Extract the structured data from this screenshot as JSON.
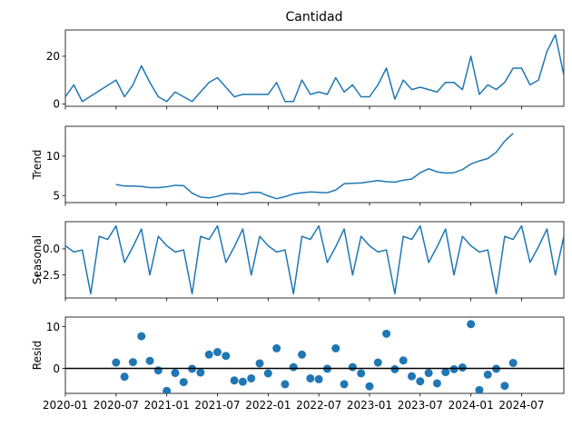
{
  "figure": {
    "title": "Cantidad",
    "line_color": "#1f77b4",
    "marker_color": "#1f77b4",
    "zero_line_color": "#000000"
  },
  "x_axis": {
    "type": "date",
    "range": [
      "2020-01",
      "2024-12"
    ],
    "tick_labels": [
      "2020-01",
      "2020-07",
      "2021-01",
      "2021-07",
      "2022-01",
      "2022-07",
      "2023-01",
      "2023-07",
      "2024-01",
      "2024-07"
    ],
    "tick_dates": [
      "2020-01",
      "2020-07",
      "2021-01",
      "2021-07",
      "2022-01",
      "2022-07",
      "2023-01",
      "2023-07",
      "2024-01",
      "2024-07"
    ]
  },
  "chart_data": [
    {
      "type": "line",
      "name": "Cantidad",
      "title": "Cantidad",
      "ylabel": "",
      "ylim": [
        -1,
        31
      ],
      "yticks": [
        0,
        20
      ],
      "x": [
        "2020-01",
        "2020-02",
        "2020-03",
        "2020-04",
        "2020-05",
        "2020-06",
        "2020-07",
        "2020-08",
        "2020-09",
        "2020-10",
        "2020-11",
        "2020-12",
        "2021-01",
        "2021-02",
        "2021-03",
        "2021-04",
        "2021-05",
        "2021-06",
        "2021-07",
        "2021-08",
        "2021-09",
        "2021-10",
        "2021-11",
        "2021-12",
        "2022-01",
        "2022-02",
        "2022-03",
        "2022-04",
        "2022-05",
        "2022-06",
        "2022-07",
        "2022-08",
        "2022-09",
        "2022-10",
        "2022-11",
        "2022-12",
        "2023-01",
        "2023-02",
        "2023-03",
        "2023-04",
        "2023-05",
        "2023-06",
        "2023-07",
        "2023-08",
        "2023-09",
        "2023-10",
        "2023-11",
        "2023-12",
        "2024-01",
        "2024-02",
        "2024-03",
        "2024-04",
        "2024-05",
        "2024-06",
        "2024-07",
        "2024-08",
        "2024-09",
        "2024-10",
        "2024-11",
        "2024-12"
      ],
      "y": [
        3,
        8,
        1,
        null,
        null,
        null,
        10,
        3,
        8,
        16,
        9,
        3,
        1,
        5,
        3,
        1,
        5,
        9,
        11,
        7,
        3,
        4,
        4,
        4,
        4,
        9,
        1,
        1,
        10,
        4,
        5,
        4,
        11,
        5,
        8,
        3,
        3,
        8,
        15,
        2,
        10,
        6,
        7,
        6,
        5,
        9,
        9,
        6,
        20,
        4,
        8,
        6,
        9,
        15,
        15,
        8,
        10,
        22,
        29,
        12
      ]
    },
    {
      "type": "line",
      "name": "Trend",
      "ylabel": "Trend",
      "ylim": [
        4.1,
        13.8
      ],
      "yticks": [
        5,
        10
      ],
      "x": [
        "2020-07",
        "2020-08",
        "2020-09",
        "2020-10",
        "2020-11",
        "2020-12",
        "2021-01",
        "2021-02",
        "2021-03",
        "2021-04",
        "2021-05",
        "2021-06",
        "2021-07",
        "2021-08",
        "2021-09",
        "2021-10",
        "2021-11",
        "2021-12",
        "2022-01",
        "2022-02",
        "2022-03",
        "2022-04",
        "2022-05",
        "2022-06",
        "2022-07",
        "2022-08",
        "2022-09",
        "2022-10",
        "2022-11",
        "2022-12",
        "2023-01",
        "2023-02",
        "2023-03",
        "2023-04",
        "2023-05",
        "2023-06",
        "2023-07",
        "2023-08",
        "2023-09",
        "2023-10",
        "2023-11",
        "2023-12",
        "2024-01",
        "2024-02",
        "2024-03",
        "2024-04",
        "2024-05",
        "2024-06"
      ],
      "y": [
        6.4,
        6.2,
        6.2,
        6.15,
        6.0,
        6.0,
        6.1,
        6.3,
        6.25,
        5.3,
        4.8,
        4.7,
        4.9,
        5.2,
        5.25,
        5.15,
        5.4,
        5.4,
        4.95,
        4.6,
        4.85,
        5.2,
        5.35,
        5.45,
        5.4,
        5.35,
        5.7,
        6.5,
        6.55,
        6.6,
        6.75,
        6.9,
        6.75,
        6.7,
        6.95,
        7.1,
        7.9,
        8.4,
        8.0,
        7.85,
        7.9,
        8.3,
        9.0,
        9.4,
        9.7,
        10.5,
        11.9,
        12.9
      ]
    },
    {
      "type": "line",
      "name": "Seasonal",
      "ylabel": "Seasonal",
      "ylim": [
        -4.7,
        2.6
      ],
      "yticks": [
        0.0,
        -2.5
      ],
      "ytick_labels": [
        "0.0",
        "−2.5"
      ],
      "x": [
        "2020-01",
        "2020-02",
        "2020-03",
        "2020-04",
        "2020-05",
        "2020-06",
        "2020-07",
        "2020-08",
        "2020-09",
        "2020-10",
        "2020-11",
        "2020-12",
        "2021-01",
        "2021-02",
        "2021-03",
        "2021-04",
        "2021-05",
        "2021-06",
        "2021-07",
        "2021-08",
        "2021-09",
        "2021-10",
        "2021-11",
        "2021-12",
        "2022-01",
        "2022-02",
        "2022-03",
        "2022-04",
        "2022-05",
        "2022-06",
        "2022-07",
        "2022-08",
        "2022-09",
        "2022-10",
        "2022-11",
        "2022-12",
        "2023-01",
        "2023-02",
        "2023-03",
        "2023-04",
        "2023-05",
        "2023-06",
        "2023-07",
        "2023-08",
        "2023-09",
        "2023-10",
        "2023-11",
        "2023-12",
        "2024-01",
        "2024-02",
        "2024-03",
        "2024-04",
        "2024-05",
        "2024-06",
        "2024-07",
        "2024-08",
        "2024-09",
        "2024-10",
        "2024-11",
        "2024-12"
      ],
      "y": [
        0.3,
        -0.3,
        -0.1,
        -4.3,
        1.2,
        0.9,
        2.2,
        -1.3,
        0.2,
        1.9,
        -2.5,
        1.2,
        0.3,
        -0.3,
        -0.1,
        -4.3,
        1.2,
        0.9,
        2.2,
        -1.3,
        0.2,
        1.9,
        -2.5,
        1.2,
        0.3,
        -0.3,
        -0.1,
        -4.3,
        1.2,
        0.9,
        2.2,
        -1.3,
        0.2,
        1.9,
        -2.5,
        1.2,
        0.3,
        -0.3,
        -0.1,
        -4.3,
        1.2,
        0.9,
        2.2,
        -1.3,
        0.2,
        1.9,
        -2.5,
        1.2,
        0.3,
        -0.3,
        -0.1,
        -4.3,
        1.2,
        0.9,
        2.2,
        -1.3,
        0.2,
        1.9,
        -2.5,
        1.2
      ]
    },
    {
      "type": "scatter",
      "name": "Resid",
      "ylabel": "Resid",
      "ylim": [
        -6,
        12.3
      ],
      "yticks": [
        0,
        10
      ],
      "zero_line": 0,
      "x": [
        "2020-07",
        "2020-08",
        "2020-09",
        "2020-10",
        "2020-11",
        "2020-12",
        "2021-01",
        "2021-02",
        "2021-03",
        "2021-04",
        "2021-05",
        "2021-06",
        "2021-07",
        "2021-08",
        "2021-09",
        "2021-10",
        "2021-11",
        "2021-12",
        "2022-01",
        "2022-02",
        "2022-03",
        "2022-04",
        "2022-05",
        "2022-06",
        "2022-07",
        "2022-08",
        "2022-09",
        "2022-10",
        "2022-11",
        "2022-12",
        "2023-01",
        "2023-02",
        "2023-03",
        "2023-04",
        "2023-05",
        "2023-06",
        "2023-07",
        "2023-08",
        "2023-09",
        "2023-10",
        "2023-11",
        "2023-12",
        "2024-01",
        "2024-02",
        "2024-03",
        "2024-04",
        "2024-05",
        "2024-06"
      ],
      "y": [
        1.4,
        -2.0,
        1.5,
        7.7,
        1.8,
        -0.5,
        -5.4,
        -1.1,
        -3.3,
        -0.1,
        -1.0,
        3.3,
        3.9,
        3.0,
        -2.9,
        -3.2,
        -2.4,
        1.2,
        -1.2,
        4.8,
        -3.8,
        0.3,
        3.3,
        -2.4,
        -2.6,
        -0.1,
        4.8,
        -3.8,
        0.3,
        -1.2,
        -4.3,
        1.4,
        8.3,
        -0.2,
        1.9,
        -1.9,
        -3.1,
        -1.1,
        -3.6,
        -0.9,
        -0.2,
        0.2,
        10.6,
        -5.2,
        -1.5,
        -0.1,
        -4.2,
        1.3
      ]
    }
  ]
}
